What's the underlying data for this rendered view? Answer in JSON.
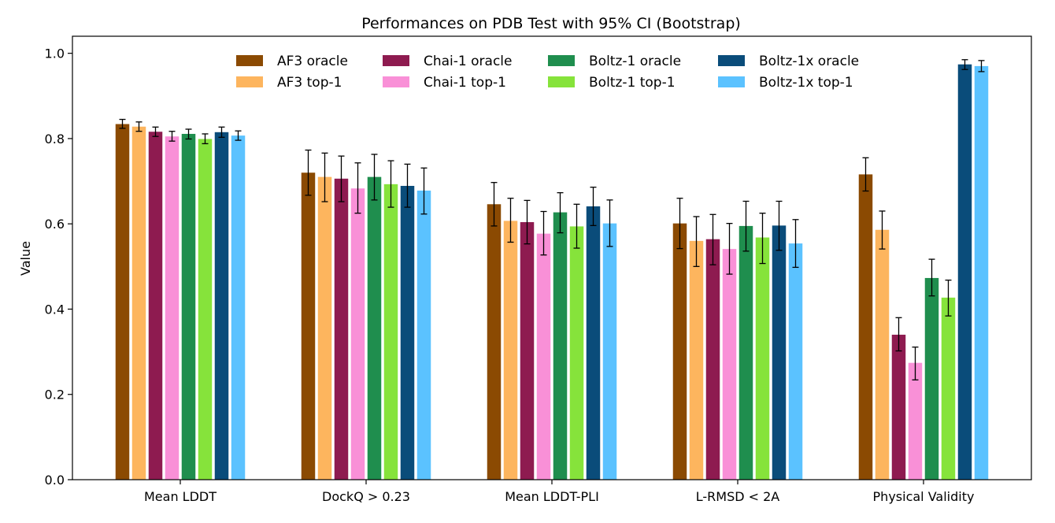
{
  "chart_data": {
    "type": "bar",
    "title": "Performances on PDB Test with 95% CI (Bootstrap)",
    "xlabel": "",
    "ylabel": "Value",
    "ylim": [
      0.0,
      1.04
    ],
    "yticks": [
      "0.0",
      "0.2",
      "0.4",
      "0.6",
      "0.8",
      "1.0"
    ],
    "grid": false,
    "legend_position": "top-center",
    "categories": [
      "Mean LDDT",
      "DockQ > 0.23",
      "Mean LDDT-PLI",
      "L-RMSD < 2A",
      "Physical Validity"
    ],
    "series": [
      {
        "name": "AF3 oracle",
        "color": "#8B4A02",
        "values": [
          0.834,
          0.72,
          0.646,
          0.601,
          0.716
        ],
        "ci_low": [
          0.824,
          0.667,
          0.595,
          0.542,
          0.677
        ],
        "ci_high": [
          0.845,
          0.773,
          0.697,
          0.66,
          0.755
        ]
      },
      {
        "name": "AF3 top-1",
        "color": "#FDB55E",
        "values": [
          0.828,
          0.71,
          0.607,
          0.56,
          0.586
        ],
        "ci_low": [
          0.817,
          0.652,
          0.557,
          0.5,
          0.541
        ],
        "ci_high": [
          0.839,
          0.766,
          0.66,
          0.617,
          0.63
        ]
      },
      {
        "name": "Chai-1 oracle",
        "color": "#8E1B50",
        "values": [
          0.816,
          0.706,
          0.604,
          0.564,
          0.34
        ],
        "ci_low": [
          0.805,
          0.652,
          0.553,
          0.504,
          0.302
        ],
        "ci_high": [
          0.827,
          0.759,
          0.655,
          0.622,
          0.38
        ]
      },
      {
        "name": "Chai-1 top-1",
        "color": "#F990D7",
        "values": [
          0.805,
          0.683,
          0.577,
          0.541,
          0.274
        ],
        "ci_low": [
          0.794,
          0.625,
          0.527,
          0.482,
          0.234
        ],
        "ci_high": [
          0.817,
          0.743,
          0.629,
          0.601,
          0.311
        ]
      },
      {
        "name": "Boltz-1 oracle",
        "color": "#1F8E4E",
        "values": [
          0.811,
          0.71,
          0.627,
          0.595,
          0.473
        ],
        "ci_low": [
          0.799,
          0.656,
          0.579,
          0.536,
          0.431
        ],
        "ci_high": [
          0.822,
          0.763,
          0.673,
          0.653,
          0.517
        ]
      },
      {
        "name": "Boltz-1 top-1",
        "color": "#86E33B",
        "values": [
          0.799,
          0.693,
          0.594,
          0.568,
          0.427
        ],
        "ci_low": [
          0.788,
          0.639,
          0.543,
          0.507,
          0.384
        ],
        "ci_high": [
          0.811,
          0.748,
          0.646,
          0.625,
          0.468
        ]
      },
      {
        "name": "Boltz-1x oracle",
        "color": "#0A4C7A",
        "values": [
          0.815,
          0.689,
          0.641,
          0.596,
          0.974
        ],
        "ci_low": [
          0.803,
          0.639,
          0.596,
          0.538,
          0.962
        ],
        "ci_high": [
          0.827,
          0.74,
          0.686,
          0.653,
          0.985
        ]
      },
      {
        "name": "Boltz-1x top-1",
        "color": "#5BC2FF",
        "values": [
          0.807,
          0.678,
          0.601,
          0.554,
          0.97
        ],
        "ci_low": [
          0.796,
          0.623,
          0.547,
          0.498,
          0.957
        ],
        "ci_high": [
          0.818,
          0.731,
          0.656,
          0.61,
          0.983
        ]
      }
    ]
  }
}
